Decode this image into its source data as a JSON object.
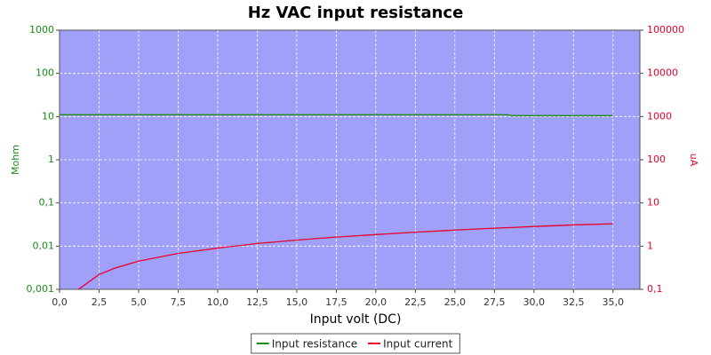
{
  "chart_data": {
    "type": "line",
    "title": "Hz VAC input resistance",
    "x_label": "Input volt (DC)",
    "y_label": "Mohm",
    "y2_label": "uA",
    "x": [
      0,
      1.2,
      2.5,
      3.5,
      5,
      7.5,
      10,
      12.5,
      15,
      17.5,
      20,
      22.5,
      25,
      27.5,
      28.3,
      28.6,
      30,
      32.5,
      35
    ],
    "series": [
      {
        "name": "Input resistance",
        "color": "#1a8c1a",
        "values": [
          11,
          11,
          11,
          11,
          11,
          11,
          11,
          11,
          11,
          11,
          11,
          11,
          11,
          11,
          11,
          10.5,
          10.5,
          10.5,
          10.5
        ]
      },
      {
        "name": "Input current",
        "color": "#e8002a",
        "axis": "y2",
        "values": [
          null,
          0.1,
          0.22,
          0.31,
          0.45,
          0.68,
          0.9,
          1.15,
          1.38,
          1.62,
          1.85,
          2.1,
          2.35,
          2.6,
          2.67,
          2.7,
          2.85,
          3.1,
          3.3
        ]
      }
    ],
    "xlim": [
      0,
      36.7
    ],
    "xticks": [
      {
        "value": 0,
        "label": "0,0"
      },
      {
        "value": 2.5,
        "label": "2,5"
      },
      {
        "value": 5,
        "label": "5,0"
      },
      {
        "value": 7.5,
        "label": "7,5"
      },
      {
        "value": 10,
        "label": "10,0"
      },
      {
        "value": 12.5,
        "label": "12,5"
      },
      {
        "value": 15,
        "label": "15,0"
      },
      {
        "value": 17.5,
        "label": "17,5"
      },
      {
        "value": 20,
        "label": "20,0"
      },
      {
        "value": 22.5,
        "label": "22,5"
      },
      {
        "value": 25,
        "label": "25,0"
      },
      {
        "value": 27.5,
        "label": "27,5"
      },
      {
        "value": 30,
        "label": "30,0"
      },
      {
        "value": 32.5,
        "label": "32,5"
      },
      {
        "value": 35,
        "label": "35,0"
      }
    ],
    "ylim": [
      0.001,
      1000
    ],
    "ylog": true,
    "yticks": [
      {
        "value": 0.001,
        "label": "0,001"
      },
      {
        "value": 0.01,
        "label": "0,01"
      },
      {
        "value": 0.1,
        "label": "0,1"
      },
      1,
      10,
      100,
      1000
    ],
    "y2lim": [
      0.1,
      100000
    ],
    "y2log": true,
    "y2ticks": [
      {
        "value": 0.1,
        "label": "0,1"
      },
      1,
      10,
      100,
      1000,
      10000,
      100000
    ],
    "grid": true,
    "legend": "bottom",
    "background": "#a0a0f8"
  }
}
